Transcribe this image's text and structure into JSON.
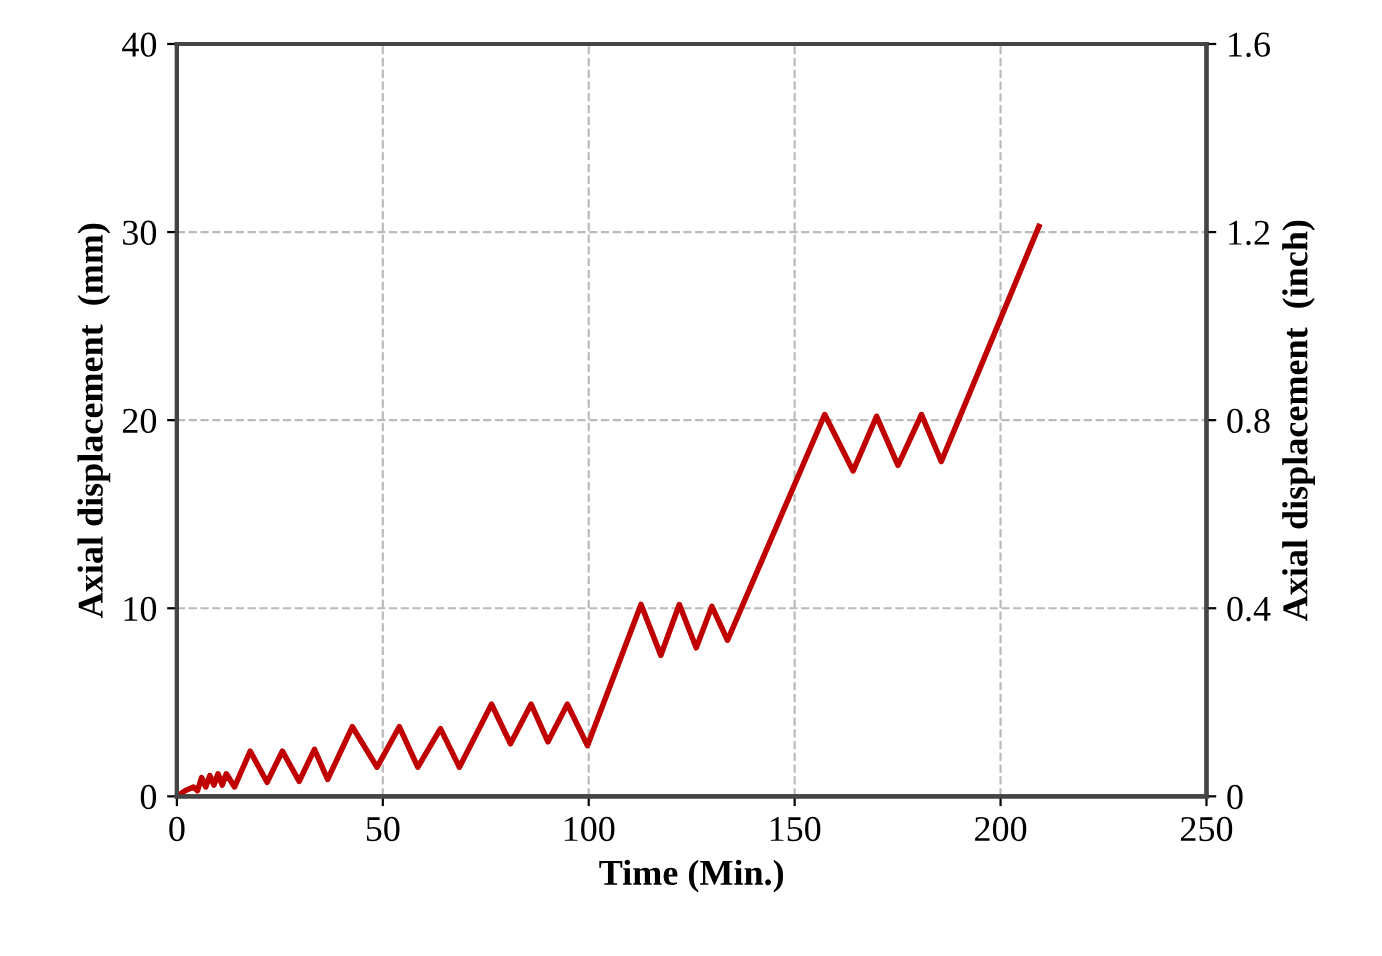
{
  "chart_data": {
    "type": "line",
    "xlabel": "Time (Min.)",
    "ylabel": "Axial displacement  (mm)",
    "y2label": "Axial displacement  (inch)",
    "xlim": [
      0,
      250
    ],
    "xticks": [
      0,
      50,
      100,
      150,
      200,
      250
    ],
    "ylim": [
      0,
      40
    ],
    "yticks": [
      0,
      10,
      20,
      30,
      40
    ],
    "y2lim": [
      0,
      1.6
    ],
    "y2ticks": [
      {
        "value": 0,
        "label": "0"
      },
      {
        "value": 0.4,
        "label": "0.4"
      },
      {
        "value": 0.8,
        "label": "0.8"
      },
      {
        "value": 1.2,
        "label": "1.2"
      },
      {
        "value": 1.6,
        "label": "1.6"
      }
    ],
    "grid": true,
    "marker": "none",
    "line_style": "solid",
    "series": [
      {
        "color": "#c00000",
        "x": [
          0,
          2,
          4,
          5,
          6,
          7,
          8,
          9,
          10,
          11,
          12,
          14,
          17.8,
          21.9,
          25.6,
          29.7,
          33.4,
          36.6,
          42.6,
          48.6,
          54,
          58.5,
          64,
          68.6,
          76.4,
          81,
          86,
          90.1,
          94.8,
          99.7,
          112.7,
          117.5,
          122,
          126.1,
          129.9,
          133.7,
          157.3,
          164.2,
          169.9,
          175.1,
          180.8,
          185.6,
          209.3
        ],
        "values": [
          0,
          0.3,
          0.5,
          0.3,
          1.0,
          0.5,
          1.1,
          0.6,
          1.2,
          0.6,
          1.2,
          0.5,
          2.4,
          0.75,
          2.4,
          0.8,
          2.5,
          0.9,
          3.7,
          1.55,
          3.7,
          1.55,
          3.6,
          1.55,
          4.9,
          2.8,
          4.9,
          2.9,
          4.9,
          2.7,
          10.2,
          7.5,
          10.2,
          7.9,
          10.1,
          8.3,
          20.3,
          17.3,
          20.2,
          17.6,
          20.3,
          17.8,
          30.3
        ]
      }
    ]
  }
}
